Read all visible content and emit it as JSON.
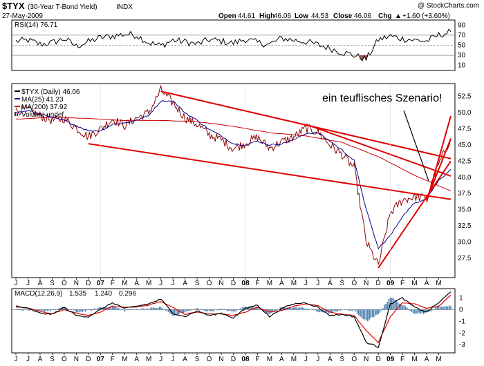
{
  "header": {
    "symbol": "$TYX",
    "name": "(30-Year T-Bond Yield)",
    "exchange": "INDX",
    "date": "27-May-2009",
    "watermark": "@ StockCharts.com",
    "open_label": "Open",
    "open": "44.61",
    "high_label": "High",
    "high": "46.06",
    "low_label": "Low",
    "low": "44.53",
    "close_label": "Close",
    "close": "46.06",
    "chg_label": "Chg",
    "chg": "+1.60 (+3.60%)",
    "chg_arrow": "▲"
  },
  "annotation": "ein teuflisches Szenario!",
  "colors": {
    "price": "#8b0000",
    "ma25": "#00008b",
    "ma200": "#cc0000",
    "trend": "#e00000",
    "macd": "#000000",
    "signal": "#e00000",
    "hist": "#4a7fb0",
    "rsi": "#000000",
    "rsiFill": "#a05050"
  },
  "chart_data": [
    {
      "type": "line",
      "panel": "RSI",
      "title": "RSI(14) 76.71",
      "ylim": [
        0,
        100
      ],
      "yticks": [
        10,
        30,
        50,
        70,
        90
      ],
      "reference_lines": [
        30,
        50,
        70
      ],
      "x_month_index": [
        0,
        1,
        2,
        3,
        4,
        5,
        6,
        7,
        8,
        9,
        10,
        11,
        12,
        13,
        14,
        15,
        16,
        17,
        18,
        19,
        20,
        21,
        22,
        23,
        24,
        25,
        26,
        27,
        28,
        29,
        30,
        31,
        32,
        33,
        34,
        35,
        36
      ],
      "values": [
        58,
        60,
        52,
        55,
        63,
        48,
        57,
        65,
        68,
        72,
        70,
        55,
        49,
        60,
        57,
        52,
        61,
        58,
        54,
        62,
        55,
        52,
        64,
        60,
        57,
        51,
        44,
        36,
        30,
        22,
        61,
        68,
        63,
        60,
        58,
        70,
        76.71
      ]
    },
    {
      "type": "line",
      "panel": "Price",
      "title": "$TYX (Daily) 46.06",
      "ylim": [
        24.5,
        54.5
      ],
      "yticks": [
        27.5,
        30.0,
        32.5,
        35.0,
        37.5,
        40.0,
        42.5,
        45.0,
        47.5,
        50.0,
        52.5
      ],
      "legend": [
        "$TYX (Daily) 46.06",
        "MA(25) 41.23",
        "MA(200) 37.92",
        "Volume undef"
      ],
      "x_months": [
        "J",
        "J",
        "A",
        "S",
        "O",
        "N",
        "D",
        "07",
        "F",
        "M",
        "A",
        "M",
        "J",
        "J",
        "A",
        "S",
        "O",
        "N",
        "D",
        "08",
        "F",
        "M",
        "A",
        "M",
        "J",
        "J",
        "A",
        "S",
        "O",
        "N",
        "D",
        "09",
        "F",
        "M",
        "A",
        "M"
      ],
      "series": [
        {
          "name": "$TYX (Daily)",
          "x": [
            0,
            1,
            2,
            3,
            4,
            5,
            6,
            7,
            8,
            9,
            10,
            11,
            12,
            13,
            14,
            15,
            16,
            17,
            18,
            19,
            20,
            21,
            22,
            23,
            24,
            25,
            26,
            27,
            28,
            29,
            30,
            31,
            32,
            33,
            34,
            35,
            36
          ],
          "values": [
            50.3,
            50.5,
            49.5,
            48.8,
            49.1,
            47.6,
            46.3,
            47.5,
            49.0,
            48.0,
            49.2,
            50.0,
            53.5,
            51.5,
            49.2,
            48.2,
            46.6,
            45.8,
            44.4,
            45.3,
            46.2,
            44.5,
            45.5,
            46.2,
            47.6,
            47.0,
            45.0,
            43.5,
            41.5,
            30.0,
            26.4,
            34.5,
            36.5,
            37.0,
            36.8,
            42.0,
            46.06
          ]
        },
        {
          "name": "MA(25)",
          "x": [
            0,
            1,
            2,
            3,
            4,
            5,
            6,
            7,
            8,
            9,
            10,
            11,
            12,
            13,
            14,
            15,
            16,
            17,
            18,
            19,
            20,
            21,
            22,
            23,
            24,
            25,
            26,
            27,
            28,
            29,
            30,
            31,
            32,
            33,
            34,
            35,
            36
          ],
          "values": [
            50.0,
            50.3,
            49.8,
            49.2,
            48.8,
            48.0,
            47.2,
            47.2,
            48.2,
            48.4,
            48.8,
            49.6,
            51.8,
            51.8,
            50.0,
            48.8,
            47.4,
            46.4,
            45.2,
            45.0,
            45.6,
            45.0,
            45.2,
            45.8,
            46.8,
            46.9,
            45.6,
            44.2,
            42.6,
            35.0,
            29.0,
            31.0,
            34.0,
            36.0,
            36.8,
            39.5,
            41.23
          ]
        },
        {
          "name": "MA(200)",
          "x": [
            0,
            3,
            6,
            9,
            12,
            15,
            18,
            21,
            24,
            27,
            30,
            33,
            36
          ],
          "values": [
            49.0,
            49.3,
            49.1,
            48.8,
            48.8,
            48.6,
            47.9,
            46.9,
            46.4,
            45.4,
            43.2,
            40.3,
            37.92
          ]
        }
      ],
      "trendlines": [
        {
          "name": "upper channel",
          "from": [
            12,
            53.3
          ],
          "to": [
            36,
            42.9
          ]
        },
        {
          "name": "lower channel",
          "from": [
            6,
            45.2
          ],
          "to": [
            36,
            36.6
          ]
        },
        {
          "name": "resistance",
          "from": [
            24,
            48.2
          ],
          "to": [
            36,
            40.2
          ]
        },
        {
          "name": "uptrend 1",
          "from": [
            30,
            26.0
          ],
          "to": [
            36,
            42.5
          ]
        },
        {
          "name": "uptrend 2",
          "from": [
            34,
            36.5
          ],
          "to": [
            36,
            46.0
          ]
        },
        {
          "name": "uptrend 3",
          "from": [
            34,
            36.2
          ],
          "to": [
            36,
            49.5
          ]
        }
      ]
    },
    {
      "type": "line",
      "panel": "MACD",
      "title": "MACD(12,26,9) 1.535, 1.240, 0.296",
      "legend_values": [
        "1.535",
        "1.240",
        "0.296"
      ],
      "ylim": [
        -3.7,
        1.8
      ],
      "yticks": [
        -3,
        -2,
        -1,
        0,
        1
      ],
      "series": [
        {
          "name": "MACD",
          "x": [
            0,
            1,
            2,
            3,
            4,
            5,
            6,
            7,
            8,
            9,
            10,
            11,
            12,
            13,
            14,
            15,
            16,
            17,
            18,
            19,
            20,
            21,
            22,
            23,
            24,
            25,
            26,
            27,
            28,
            29,
            30,
            31,
            32,
            33,
            34,
            35,
            36
          ],
          "values": [
            0.3,
            0.1,
            -0.3,
            -0.4,
            0.2,
            -0.5,
            -0.6,
            0.0,
            0.6,
            0.1,
            0.3,
            0.5,
            0.9,
            -0.3,
            -0.6,
            -0.1,
            -0.5,
            -0.3,
            -0.7,
            0.1,
            0.4,
            -0.6,
            0.1,
            0.5,
            0.6,
            0.2,
            -0.5,
            -0.4,
            -0.6,
            -2.8,
            -3.2,
            0.5,
            1.0,
            0.2,
            -0.2,
            0.6,
            1.535
          ]
        },
        {
          "name": "Signal",
          "x": [
            0,
            1,
            2,
            3,
            4,
            5,
            6,
            7,
            8,
            9,
            10,
            11,
            12,
            13,
            14,
            15,
            16,
            17,
            18,
            19,
            20,
            21,
            22,
            23,
            24,
            25,
            26,
            27,
            28,
            29,
            30,
            31,
            32,
            33,
            34,
            35,
            36
          ],
          "values": [
            0.25,
            0.15,
            -0.15,
            -0.35,
            0.0,
            -0.3,
            -0.5,
            -0.2,
            0.3,
            0.2,
            0.25,
            0.4,
            0.7,
            0.2,
            -0.4,
            -0.2,
            -0.35,
            -0.35,
            -0.5,
            -0.2,
            0.2,
            -0.2,
            -0.1,
            0.3,
            0.5,
            0.35,
            -0.2,
            -0.4,
            -0.5,
            -1.8,
            -2.8,
            -0.6,
            0.6,
            0.5,
            0.1,
            0.3,
            1.24
          ]
        },
        {
          "name": "Histogram",
          "x": [
            0,
            1,
            2,
            3,
            4,
            5,
            6,
            7,
            8,
            9,
            10,
            11,
            12,
            13,
            14,
            15,
            16,
            17,
            18,
            19,
            20,
            21,
            22,
            23,
            24,
            25,
            26,
            27,
            28,
            29,
            30,
            31,
            32,
            33,
            34,
            35,
            36
          ],
          "values": [
            0.05,
            -0.05,
            -0.15,
            -0.05,
            0.2,
            -0.2,
            -0.1,
            0.2,
            0.3,
            -0.1,
            0.05,
            0.1,
            0.2,
            -0.5,
            -0.2,
            0.1,
            -0.15,
            0.05,
            -0.2,
            0.3,
            0.2,
            -0.4,
            0.2,
            0.2,
            0.1,
            -0.15,
            -0.3,
            0.0,
            -0.1,
            -1.0,
            -0.4,
            1.1,
            0.4,
            -0.3,
            -0.3,
            0.3,
            0.296
          ]
        }
      ]
    }
  ]
}
